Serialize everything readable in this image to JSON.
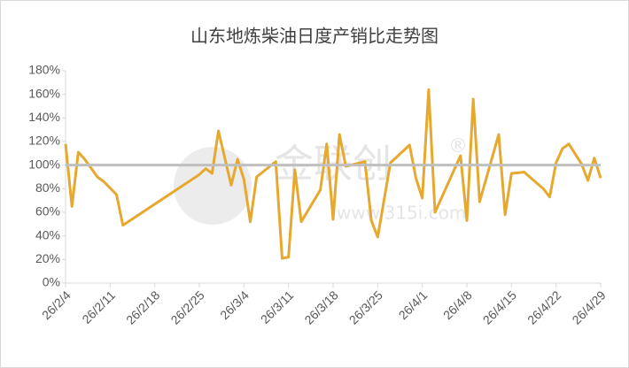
{
  "chart_data": {
    "type": "line",
    "title": "山东地炼柴油日度产销比走势图",
    "x": [
      "26/2/4",
      "26/2/5",
      "26/2/6",
      "26/2/7",
      "26/2/9",
      "26/2/10",
      "26/2/12",
      "26/2/13",
      "26/2/25",
      "26/2/26",
      "26/2/27",
      "26/2/28",
      "26/3/2",
      "26/3/3",
      "26/3/4",
      "26/3/5",
      "26/3/6",
      "26/3/9",
      "26/3/10",
      "26/3/11",
      "26/3/12",
      "26/3/13",
      "26/3/16",
      "26/3/17",
      "26/3/18",
      "26/3/19",
      "26/3/20",
      "26/3/23",
      "26/3/24",
      "26/3/25",
      "26/3/27",
      "26/3/30",
      "26/3/31",
      "26/4/1",
      "26/4/2",
      "26/4/3",
      "26/4/7",
      "26/4/8",
      "26/4/9",
      "26/4/10",
      "26/4/13",
      "26/4/14",
      "26/4/15",
      "26/4/17",
      "26/4/20",
      "26/4/21",
      "26/4/22",
      "26/4/23",
      "26/4/24",
      "26/4/26",
      "26/4/27",
      "26/4/28",
      "26/4/29"
    ],
    "series": [
      {
        "color": "#e6a82e",
        "values": [
          118,
          65,
          111,
          105,
          90,
          86,
          75,
          49,
          92,
          97,
          93,
          129,
          83,
          105,
          88,
          52,
          90,
          103,
          21,
          22,
          96,
          52,
          79,
          118,
          54,
          126,
          99,
          103,
          53,
          39,
          102,
          117,
          89,
          72,
          164,
          60,
          108,
          53,
          156,
          69,
          126,
          58,
          93,
          94,
          80,
          73,
          102,
          114,
          118,
          101,
          87,
          106,
          89
        ]
      }
    ],
    "reference_line": {
      "value": 100,
      "color": "#bfbfbf"
    },
    "xlim": [
      "26/2/4",
      "26/4/29"
    ],
    "xticks": [
      "26/2/4",
      "26/2/11",
      "26/2/18",
      "26/2/25",
      "26/3/4",
      "26/3/11",
      "26/3/18",
      "26/3/25",
      "26/4/1",
      "26/4/8",
      "26/4/15",
      "26/4/22",
      "26/4/29"
    ],
    "ylim": [
      0,
      180
    ],
    "yticks": [
      {
        "value": 0,
        "label": "0%"
      },
      {
        "value": 20,
        "label": "20%"
      },
      {
        "value": 40,
        "label": "40%"
      },
      {
        "value": 60,
        "label": "60%"
      },
      {
        "value": 80,
        "label": "80%"
      },
      {
        "value": 100,
        "label": "100%"
      },
      {
        "value": 120,
        "label": "120%"
      },
      {
        "value": 140,
        "label": "140%"
      },
      {
        "value": 160,
        "label": "160%"
      },
      {
        "value": 180,
        "label": "180%"
      }
    ],
    "watermark": [
      "金联创",
      "®",
      "www.315i.com"
    ]
  }
}
